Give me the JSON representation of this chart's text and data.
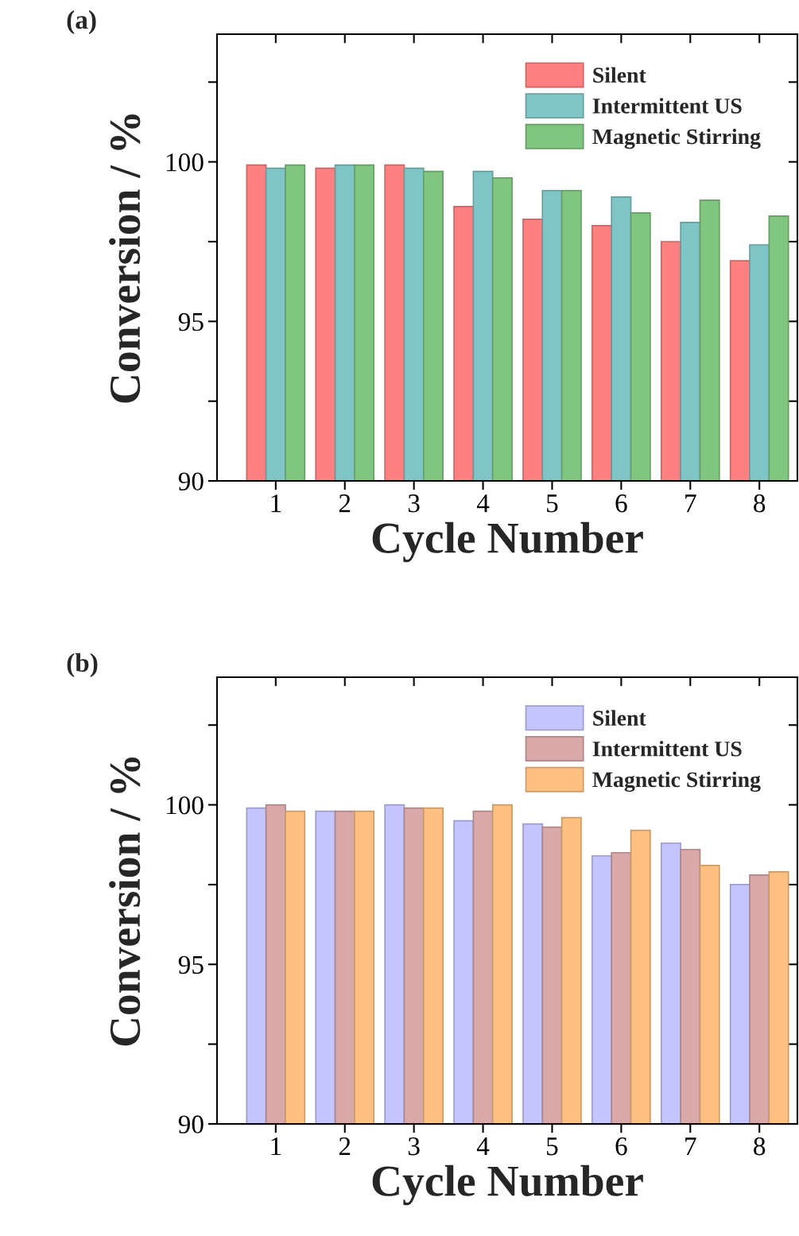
{
  "chart_data": [
    {
      "type": "bar",
      "title": "(a)",
      "xlabel": "Cycle Number",
      "ylabel": "Conversion / %",
      "categories": [
        "1",
        "2",
        "3",
        "4",
        "5",
        "6",
        "7",
        "8"
      ],
      "series": [
        {
          "name": "Silent",
          "color": "#fe8080",
          "values": [
            99.9,
            99.8,
            99.9,
            98.6,
            98.2,
            98.0,
            97.5,
            96.9
          ]
        },
        {
          "name": "Intermittent US",
          "color": "#80c5c5",
          "values": [
            99.8,
            99.9,
            99.8,
            99.7,
            99.1,
            98.9,
            98.1,
            97.4
          ]
        },
        {
          "name": "Magnetic Stirring",
          "color": "#80c580",
          "values": [
            99.9,
            99.9,
            99.7,
            99.5,
            99.1,
            98.4,
            98.8,
            98.3
          ]
        }
      ],
      "ylim": [
        90,
        104
      ],
      "yticks": [
        90,
        {
          "value": 92.5,
          "label": null
        },
        95,
        {
          "value": 97.5,
          "label": null
        },
        100,
        {
          "value": 102.5,
          "label": null
        }
      ],
      "grid": false,
      "legend": "top right"
    },
    {
      "type": "bar",
      "title": "(b)",
      "xlabel": "Cycle Number",
      "ylabel": "Conversion / %",
      "categories": [
        "1",
        "2",
        "3",
        "4",
        "5",
        "6",
        "7",
        "8"
      ],
      "series": [
        {
          "name": "Silent",
          "color": "#c4c4fe",
          "values": [
            99.9,
            99.8,
            100.0,
            99.5,
            99.4,
            98.4,
            98.8,
            97.5
          ]
        },
        {
          "name": "Intermittent US",
          "color": "#d9a8a8",
          "values": [
            100.0,
            99.8,
            99.9,
            99.8,
            99.3,
            98.5,
            98.6,
            97.8
          ]
        },
        {
          "name": "Magnetic Stirring",
          "color": "#fec080",
          "values": [
            99.8,
            99.8,
            99.9,
            100.0,
            99.6,
            99.2,
            98.1,
            97.9
          ]
        }
      ],
      "ylim": [
        90,
        104
      ],
      "yticks": [
        90,
        {
          "value": 92.5,
          "label": null
        },
        95,
        {
          "value": 97.5,
          "label": null
        },
        100,
        {
          "value": 102.5,
          "label": null
        }
      ],
      "grid": false,
      "legend": "top right"
    }
  ]
}
